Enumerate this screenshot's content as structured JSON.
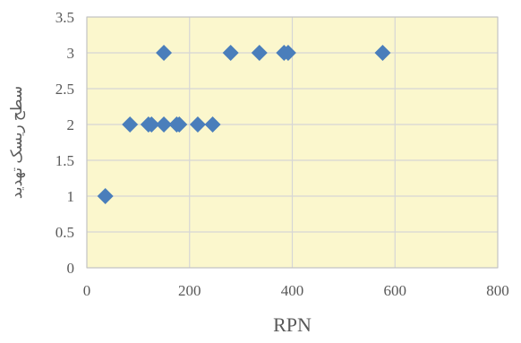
{
  "chart_data": {
    "type": "scatter",
    "title": "",
    "xlabel": "RPN",
    "ylabel": "سطح ریسک تهدید",
    "xlim": [
      0,
      800
    ],
    "ylim": [
      0,
      3.5
    ],
    "x_ticks": [
      "0",
      "200",
      "400",
      "600",
      "800"
    ],
    "y_ticks": [
      "0",
      "0.5",
      "1",
      "1.5",
      "2",
      "2.5",
      "3",
      "3.5"
    ],
    "grid": true,
    "legend": "none",
    "series": [
      {
        "points": [
          {
            "x": 36,
            "y": 1
          },
          {
            "x": 84,
            "y": 2
          },
          {
            "x": 120,
            "y": 2
          },
          {
            "x": 126,
            "y": 2
          },
          {
            "x": 150,
            "y": 2
          },
          {
            "x": 175,
            "y": 2
          },
          {
            "x": 180,
            "y": 2
          },
          {
            "x": 216,
            "y": 2
          },
          {
            "x": 245,
            "y": 2
          },
          {
            "x": 150,
            "y": 3
          },
          {
            "x": 280,
            "y": 3
          },
          {
            "x": 336,
            "y": 3
          },
          {
            "x": 384,
            "y": 3
          },
          {
            "x": 392,
            "y": 3
          },
          {
            "x": 576,
            "y": 3
          }
        ]
      }
    ]
  },
  "colors": {
    "plot_background": "#fbf7cd",
    "gridline": "#d6d6d6",
    "marker": "#4a7ebb",
    "axis": "#bfbfbf"
  }
}
